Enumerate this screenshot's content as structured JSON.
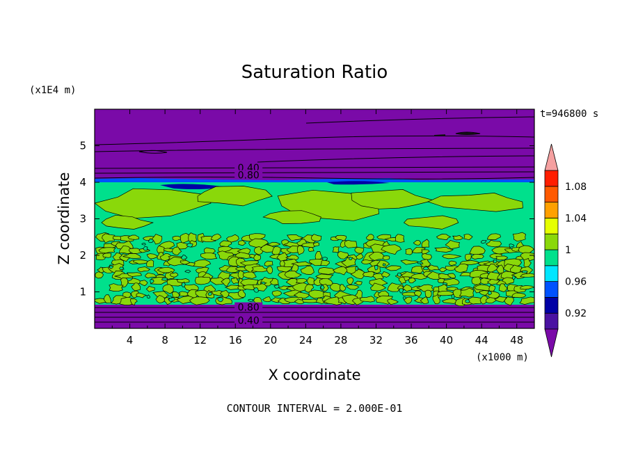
{
  "chart_data": {
    "type": "contour",
    "title": "Saturation Ratio",
    "xlabel": "X coordinate",
    "ylabel": "Z coordinate",
    "x_unit": "(x1000 m)",
    "y_unit": "(x1E4 m)",
    "timestamp": "t=946800 s",
    "footer": "CONTOUR INTERVAL = 2.000E-01",
    "xlim": [
      0,
      50
    ],
    "ylim": [
      0,
      6
    ],
    "x_ticks": [
      4,
      8,
      12,
      16,
      20,
      24,
      28,
      32,
      36,
      40,
      44,
      48
    ],
    "x_tick_labels": [
      "4",
      "8",
      "12",
      "16",
      "20",
      "24",
      "28",
      "32",
      "36",
      "40",
      "44",
      "48"
    ],
    "y_ticks": [
      1,
      2,
      3,
      4,
      5
    ],
    "y_tick_labels": [
      "1",
      "2",
      "3",
      "4",
      "5"
    ],
    "contour_labels": [
      {
        "text": "0.40",
        "x": 17.5,
        "z": 4.4
      },
      {
        "text": "0.80",
        "x": 17.5,
        "z": 4.2
      },
      {
        "text": "0.80",
        "x": 17.5,
        "z": 0.58
      },
      {
        "text": "0.40",
        "x": 17.5,
        "z": 0.22
      }
    ],
    "colorbar": {
      "levels": [
        0.9,
        0.92,
        0.94,
        0.96,
        0.98,
        1.0,
        1.02,
        1.04,
        1.06,
        1.08,
        1.1
      ],
      "tick_labels": [
        "0.92",
        "0.96",
        "1",
        "1.04",
        "1.08"
      ],
      "tick_values": [
        0.92,
        0.96,
        1.0,
        1.04,
        1.08
      ],
      "colors": [
        "#4a12a2",
        "#0000a5",
        "#0052ff",
        "#00e6ff",
        "#00e08c",
        "#8ad80a",
        "#e6ff00",
        "#ffa000",
        "#ff5a00",
        "#ff1e00"
      ],
      "under_color": "#7a0aa8",
      "over_color": "#f5a0a0"
    },
    "bands": [
      {
        "z_range": [
          0,
          0.68
        ],
        "value": "< 0.90",
        "color": "#7a0aa8"
      },
      {
        "z_range": [
          0.68,
          4.0
        ],
        "value": "0.98 – 1.00 with patches 1.00 – 1.02",
        "color": "#00e08c"
      },
      {
        "z_range": [
          4.0,
          4.12
        ],
        "value": "0.92 – 0.96",
        "color": "#0052ff"
      },
      {
        "z_range": [
          4.12,
          6.0
        ],
        "value": "< 0.90",
        "color": "#7a0aa8"
      }
    ]
  }
}
